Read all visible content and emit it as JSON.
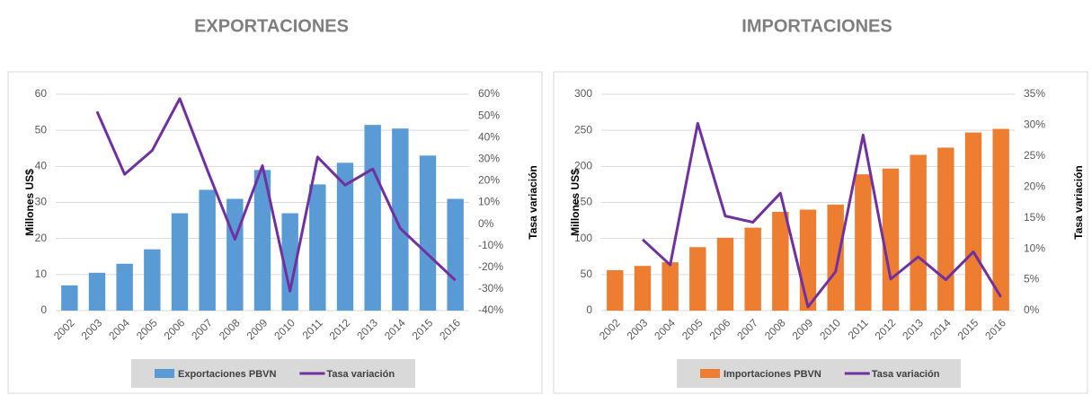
{
  "chart_data": [
    {
      "type": "combo",
      "title": "EXPORTACIONES",
      "ylabel": "Millones US$",
      "y2label": "Tasa variación",
      "categories": [
        "2002",
        "2003",
        "2004",
        "2005",
        "2006",
        "2007",
        "2008",
        "2009",
        "2010",
        "2011",
        "2012",
        "2013",
        "2014",
        "2015",
        "2016"
      ],
      "series": [
        {
          "name": "Exportaciones PBVN",
          "color": "#5b9bd5",
          "values": [
            7,
            10.5,
            13,
            17,
            27,
            33.5,
            31,
            39,
            27,
            35,
            41,
            51.5,
            50.5,
            43,
            31
          ]
        },
        {
          "name": "Tasa variación",
          "color": "#7030a0",
          "axis": "y2",
          "values": [
            null,
            52,
            23,
            34,
            58,
            25,
            -7,
            27,
            -31,
            31,
            18,
            25.5,
            -2,
            -14,
            -26
          ]
        }
      ],
      "ylim": [
        0,
        60
      ],
      "yticks": [
        0,
        10,
        20,
        30,
        40,
        50,
        60
      ],
      "y2lim": [
        -40,
        60
      ],
      "y2ticks": [
        {
          "value": -40,
          "label": "-40%"
        },
        {
          "value": -30,
          "label": "-30%"
        },
        {
          "value": -20,
          "label": "-20%"
        },
        {
          "value": -10,
          "label": "-10%"
        },
        {
          "value": 0,
          "label": "0%"
        },
        {
          "value": 10,
          "label": "10%"
        },
        {
          "value": 20,
          "label": "20%"
        },
        {
          "value": 30,
          "label": "30%"
        },
        {
          "value": 40,
          "label": "40%"
        },
        {
          "value": 50,
          "label": "50%"
        },
        {
          "value": 60,
          "label": "60%"
        }
      ],
      "grid": true,
      "legend": "bottom"
    },
    {
      "type": "combo",
      "title": "IMPORTACIONES",
      "ylabel": "Millones US$",
      "y2label": "Tasa variación",
      "categories": [
        "2002",
        "2003",
        "2004",
        "2005",
        "2006",
        "2007",
        "2008",
        "2009",
        "2010",
        "2011",
        "2012",
        "2013",
        "2014",
        "2015",
        "2016"
      ],
      "series": [
        {
          "name": "Importaciones PBVN",
          "color": "#ed7d31",
          "values": [
            56,
            62,
            67,
            88,
            101,
            115,
            137,
            140,
            147,
            189,
            197,
            216,
            226,
            247,
            252
          ]
        },
        {
          "name": "Tasa variación",
          "color": "#7030a0",
          "axis": "y2",
          "values": [
            null,
            11.5,
            7.4,
            30.3,
            15.3,
            14.3,
            19,
            0.6,
            6.3,
            28.4,
            5.1,
            8.7,
            5,
            9.5,
            2.2
          ]
        }
      ],
      "ylim": [
        0,
        300
      ],
      "yticks": [
        0,
        50,
        100,
        150,
        200,
        250,
        300
      ],
      "y2lim": [
        0,
        35
      ],
      "y2ticks": [
        {
          "value": 0,
          "label": "0%"
        },
        {
          "value": 5,
          "label": "5%"
        },
        {
          "value": 10,
          "label": "10%"
        },
        {
          "value": 15,
          "label": "15%"
        },
        {
          "value": 20,
          "label": "20%"
        },
        {
          "value": 25,
          "label": "25%"
        },
        {
          "value": 30,
          "label": "30%"
        },
        {
          "value": 35,
          "label": "35%"
        }
      ],
      "grid": true,
      "legend": "bottom"
    }
  ]
}
